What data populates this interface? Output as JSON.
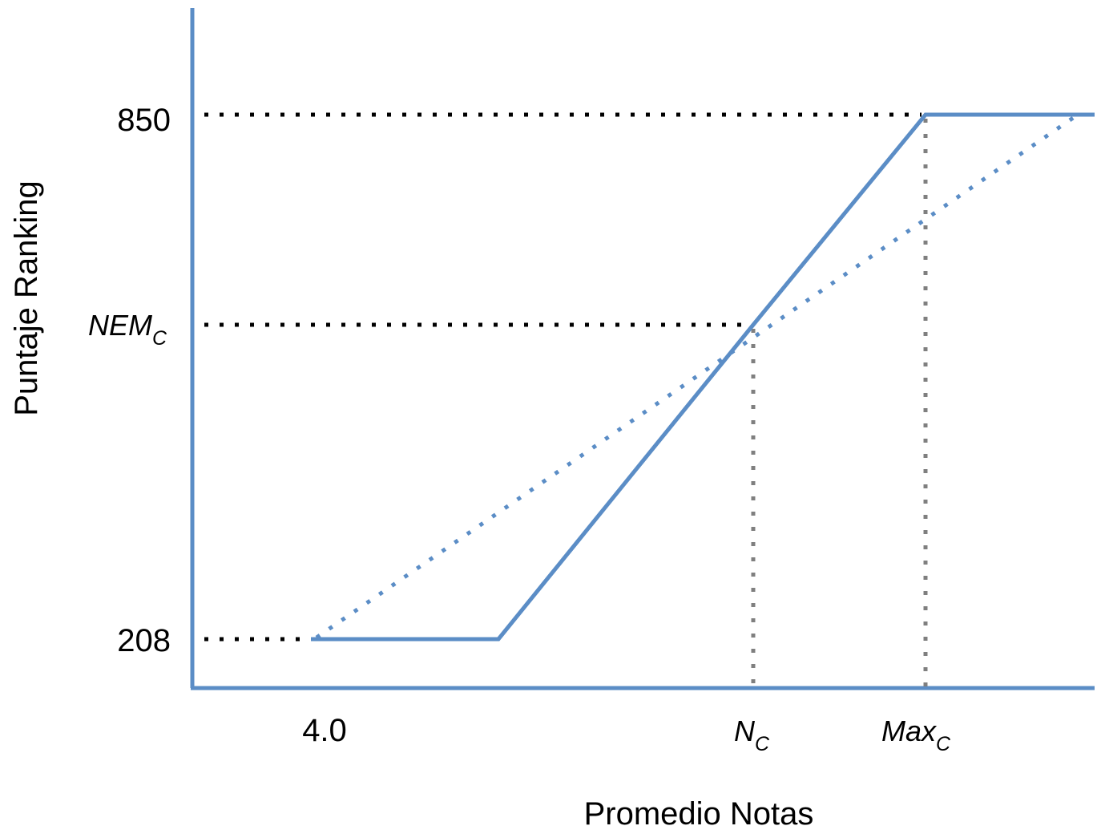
{
  "chart_data": {
    "type": "line",
    "xlabel": "Promedio Notas",
    "ylabel": "Puntaje Ranking",
    "x_ticks": [
      {
        "label": "4.0",
        "sub": ""
      },
      {
        "label": "N",
        "sub": "C"
      },
      {
        "label": "Max",
        "sub": "C"
      }
    ],
    "y_ticks": [
      {
        "label": "850",
        "sub": ""
      },
      {
        "label": "NEM",
        "sub": "C"
      },
      {
        "label": "208",
        "sub": ""
      }
    ],
    "series": [
      {
        "style": "solid",
        "points": [
          [
            "4.0",
            "208"
          ],
          [
            "",
            "208"
          ],
          [
            "N_C",
            "NEM_C"
          ],
          [
            "Max_C",
            "850"
          ],
          [
            "",
            "850"
          ]
        ]
      },
      {
        "style": "dotted",
        "points": [
          [
            "4.0",
            "208"
          ],
          [
            "",
            "850"
          ]
        ]
      }
    ],
    "reference_lines": [
      {
        "axis": "y",
        "at": "850",
        "style": "dotted"
      },
      {
        "axis": "y",
        "at": "NEM_C",
        "style": "dotted"
      },
      {
        "axis": "y",
        "at": "208",
        "style": "dotted"
      },
      {
        "axis": "x",
        "at": "N_C",
        "style": "dotted"
      },
      {
        "axis": "x",
        "at": "Max_C",
        "style": "dotted"
      }
    ],
    "grid": false,
    "legend": "none",
    "colors": {
      "line": "#5b8dc6",
      "axis": "#5b8dc6",
      "dotted_guides": "#000000",
      "dotted_vertical": "#7f7f7f"
    }
  }
}
